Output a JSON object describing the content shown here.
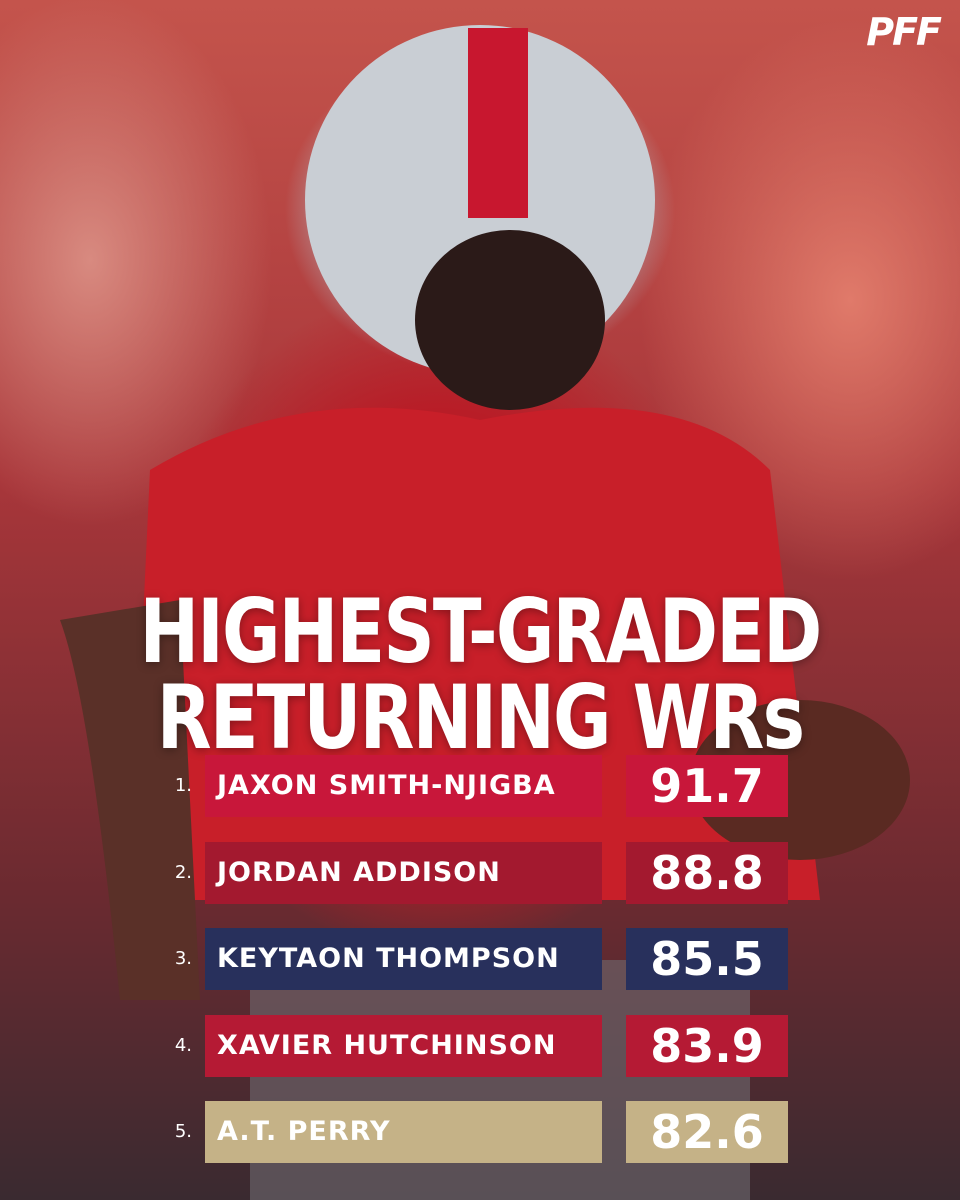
{
  "logo": "PFF",
  "title": {
    "line1": "HIGHEST-GRADED",
    "line2": "RETURNING WRs"
  },
  "rows": [
    {
      "rank": "1.",
      "name": "JAXON SMITH-NJIGBA",
      "grade": "91.7",
      "color": "#c8173a"
    },
    {
      "rank": "2.",
      "name": "JORDAN ADDISON",
      "grade": "88.8",
      "color": "#a3192f"
    },
    {
      "rank": "3.",
      "name": "KEYTAON THOMPSON",
      "grade": "85.5",
      "color": "#28305c"
    },
    {
      "rank": "4.",
      "name": "XAVIER HUTCHINSON",
      "grade": "83.9",
      "color": "#b51a34"
    },
    {
      "rank": "5.",
      "name": "A.T. PERRY",
      "grade": "82.6",
      "color": "#c5b287"
    }
  ]
}
